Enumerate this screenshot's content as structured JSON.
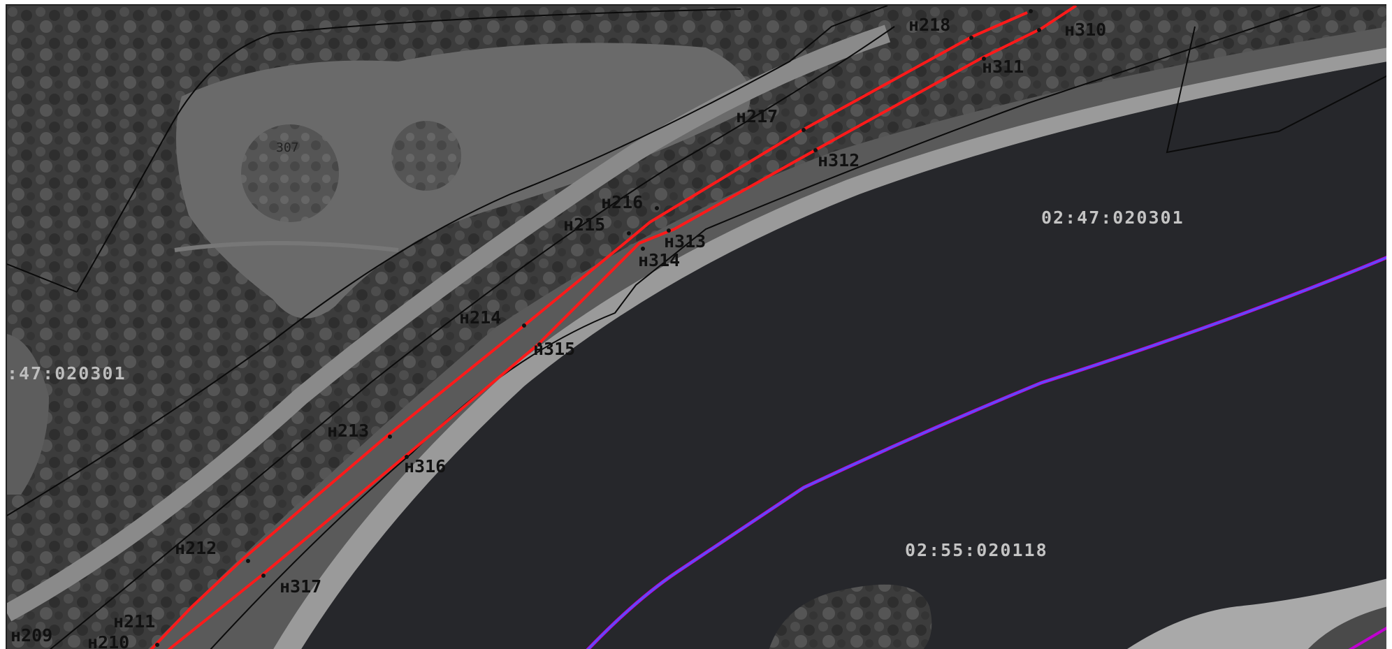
{
  "map": {
    "colors": {
      "water": "#26272b",
      "forest": "#3f3f3f",
      "meadow": "#6e6e6e",
      "beach": "#9a9a9a",
      "boundary_red": "#ff1a1a",
      "boundary_blue": "#5b4cff",
      "boundary_magenta": "#c000d0",
      "parcel_line": "#0a0a0a",
      "label_dark": "#111111",
      "label_light": "#bdbdbd"
    },
    "cadastral_labels": {
      "left": ":47:020301",
      "upper_right": "02:47:020301",
      "river": "02:55:020118",
      "parcel_307": "307"
    },
    "points": [
      {
        "id": "p209",
        "label": "н209"
      },
      {
        "id": "p210",
        "label": "н210"
      },
      {
        "id": "p211",
        "label": "н211"
      },
      {
        "id": "p212",
        "label": "н212"
      },
      {
        "id": "p213",
        "label": "н213"
      },
      {
        "id": "p214",
        "label": "н214"
      },
      {
        "id": "p215",
        "label": "н215"
      },
      {
        "id": "p216",
        "label": "н216"
      },
      {
        "id": "p217",
        "label": "н217"
      },
      {
        "id": "p218",
        "label": "н218"
      },
      {
        "id": "p310",
        "label": "н310"
      },
      {
        "id": "p311",
        "label": "н311"
      },
      {
        "id": "p312",
        "label": "н312"
      },
      {
        "id": "p313",
        "label": "н313"
      },
      {
        "id": "p314",
        "label": "н314"
      },
      {
        "id": "p315",
        "label": "н315"
      },
      {
        "id": "p316",
        "label": "н316"
      },
      {
        "id": "p317",
        "label": "н317"
      }
    ]
  }
}
